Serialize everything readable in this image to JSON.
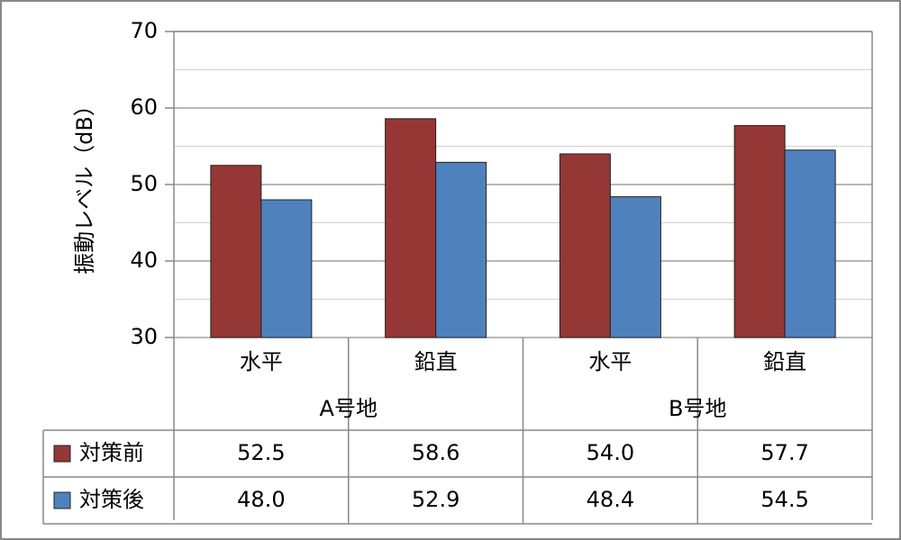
{
  "chart_data": {
    "type": "bar",
    "y_label": "振動レベル（dB）",
    "categories": [
      "水平",
      "鉛直",
      "水平",
      "鉛直"
    ],
    "groups": [
      "A号地",
      "B号地"
    ],
    "series": [
      {
        "name": "対策前",
        "color": "#953735",
        "values": [
          52.5,
          58.6,
          54.0,
          57.7
        ],
        "value_labels": [
          "52.5",
          "58.6",
          "54.0",
          "57.7"
        ]
      },
      {
        "name": "対策後",
        "color": "#4f81bd",
        "values": [
          48.0,
          52.9,
          48.4,
          54.5
        ],
        "value_labels": [
          "48.0",
          "52.9",
          "48.4",
          "54.5"
        ]
      }
    ],
    "ylim": [
      30,
      70
    ],
    "yticks": [
      30,
      40,
      50,
      60,
      70
    ],
    "minor_yticks": [
      35,
      45,
      55,
      65
    ],
    "grid": true
  }
}
